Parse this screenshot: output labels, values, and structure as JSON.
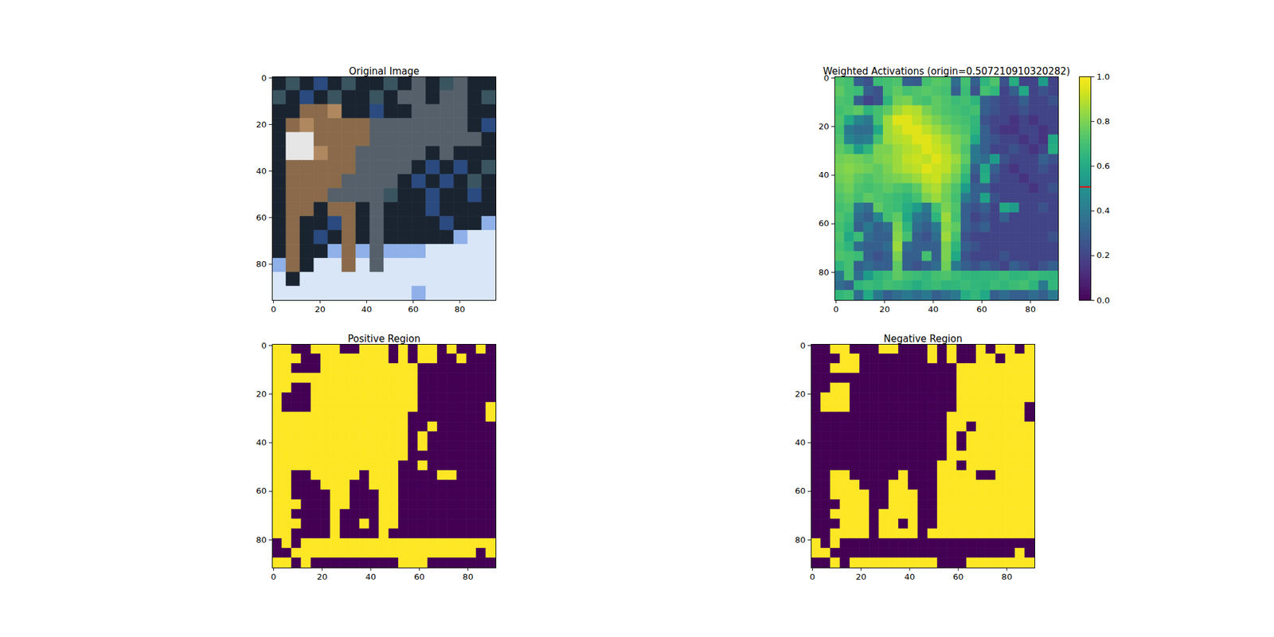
{
  "chart_data": [
    {
      "type": "image",
      "title": "Original Image",
      "xlim": [
        -0.5,
        95.5
      ],
      "ylim": [
        95.5,
        -0.5
      ],
      "xticks": [
        0,
        20,
        40,
        60,
        80
      ],
      "yticks": [
        0,
        20,
        40,
        60,
        80
      ],
      "pixels": [
        [
          "#1a2430",
          "#3a5560",
          "#1a2430",
          "#2a4a80",
          "#1a2430",
          "#3a5560",
          "#1a2430",
          "#1a2430",
          "#3a5560",
          "#1a2430",
          "#55606a",
          "#1a2430",
          "#3a5560",
          "#55606a",
          "#1a2430",
          "#1a2430"
        ],
        [
          "#3a5560",
          "#1a2430",
          "#2a4a80",
          "#1a2430",
          "#3a5560",
          "#1a2430",
          "#1a2430",
          "#3a5560",
          "#1a2430",
          "#55606a",
          "#55606a",
          "#1a2430",
          "#55606a",
          "#55606a",
          "#1a2430",
          "#3a5560"
        ],
        [
          "#1a2430",
          "#1a2430",
          "#8a6a4a",
          "#8a6a4a",
          "#b08860",
          "#1a2430",
          "#1a2430",
          "#2a4a80",
          "#1a2430",
          "#1a2430",
          "#55606a",
          "#55606a",
          "#55606a",
          "#55606a",
          "#1a2430",
          "#1a2430"
        ],
        [
          "#1a2430",
          "#8a6a4a",
          "#b08860",
          "#8a6a4a",
          "#8a6a4a",
          "#8a6a4a",
          "#8a6a4a",
          "#55606a",
          "#55606a",
          "#55606a",
          "#55606a",
          "#55606a",
          "#55606a",
          "#55606a",
          "#1a2430",
          "#2a4a80"
        ],
        [
          "#1a2430",
          "#e6e6e6",
          "#e6e6e6",
          "#8a6a4a",
          "#8a6a4a",
          "#8a6a4a",
          "#8a6a4a",
          "#55606a",
          "#55606a",
          "#55606a",
          "#55606a",
          "#55606a",
          "#55606a",
          "#55606a",
          "#55606a",
          "#1a2430"
        ],
        [
          "#1a2430",
          "#e6e6e6",
          "#e6e6e6",
          "#b08860",
          "#8a6a4a",
          "#8a6a4a",
          "#55606a",
          "#55606a",
          "#55606a",
          "#55606a",
          "#55606a",
          "#1a2430",
          "#55606a",
          "#1a2430",
          "#1a2430",
          "#1a2430"
        ],
        [
          "#1a2430",
          "#8a6a4a",
          "#8a6a4a",
          "#8a6a4a",
          "#8a6a4a",
          "#8a6a4a",
          "#55606a",
          "#55606a",
          "#55606a",
          "#55606a",
          "#1a2430",
          "#2a4a80",
          "#1a2430",
          "#2a4a80",
          "#1a2430",
          "#3a5560"
        ],
        [
          "#1a2430",
          "#8a6a4a",
          "#8a6a4a",
          "#8a6a4a",
          "#8a6a4a",
          "#55606a",
          "#55606a",
          "#55606a",
          "#55606a",
          "#1a2430",
          "#2a4a80",
          "#1a2430",
          "#2a4a80",
          "#1a2430",
          "#3a5560",
          "#1a2430"
        ],
        [
          "#1a2430",
          "#8a6a4a",
          "#8a6a4a",
          "#8a6a4a",
          "#55606a",
          "#55606a",
          "#55606a",
          "#55606a",
          "#3a5560",
          "#1a2430",
          "#1a2430",
          "#2a4a80",
          "#1a2430",
          "#1a2430",
          "#2a4a80",
          "#1a2430"
        ],
        [
          "#1a2430",
          "#8a6a4a",
          "#8a6a4a",
          "#1a2430",
          "#8a6a4a",
          "#8a6a4a",
          "#1a2430",
          "#55606a",
          "#1a2430",
          "#1a2430",
          "#1a2430",
          "#2a4a80",
          "#1a2430",
          "#1a2430",
          "#1a2430",
          "#1a2430"
        ],
        [
          "#1a2430",
          "#8a6a4a",
          "#1a2430",
          "#1a2430",
          "#2a4a80",
          "#8a6a4a",
          "#1a2430",
          "#55606a",
          "#1a2430",
          "#1a2430",
          "#1a2430",
          "#1a2430",
          "#2a4a80",
          "#1a2430",
          "#1a2430",
          "#8fb0e8"
        ],
        [
          "#1a2430",
          "#8a6a4a",
          "#1a2430",
          "#2a4a80",
          "#1a2430",
          "#8a6a4a",
          "#1a2430",
          "#55606a",
          "#1a2430",
          "#1a2430",
          "#1a2430",
          "#1a2430",
          "#1a2430",
          "#8fb0e8",
          "#d8e6f8",
          "#d8e6f8"
        ],
        [
          "#1a2430",
          "#8a6a4a",
          "#1a2430",
          "#1a2430",
          "#8fb0e8",
          "#8a6a4a",
          "#8fb0e8",
          "#55606a",
          "#8fb0e8",
          "#8fb0e8",
          "#8fb0e8",
          "#d8e6f8",
          "#d8e6f8",
          "#d8e6f8",
          "#d8e6f8",
          "#d8e6f8"
        ],
        [
          "#8fb0e8",
          "#8a6a4a",
          "#1a2430",
          "#d8e6f8",
          "#d8e6f8",
          "#8a6a4a",
          "#d8e6f8",
          "#55606a",
          "#d8e6f8",
          "#d8e6f8",
          "#d8e6f8",
          "#d8e6f8",
          "#d8e6f8",
          "#d8e6f8",
          "#d8e6f8",
          "#d8e6f8"
        ],
        [
          "#d8e6f8",
          "#1a2430",
          "#d8e6f8",
          "#d8e6f8",
          "#d8e6f8",
          "#d8e6f8",
          "#d8e6f8",
          "#d8e6f8",
          "#d8e6f8",
          "#d8e6f8",
          "#d8e6f8",
          "#d8e6f8",
          "#d8e6f8",
          "#d8e6f8",
          "#d8e6f8",
          "#d8e6f8"
        ],
        [
          "#d8e6f8",
          "#d8e6f8",
          "#d8e6f8",
          "#d8e6f8",
          "#d8e6f8",
          "#d8e6f8",
          "#d8e6f8",
          "#d8e6f8",
          "#d8e6f8",
          "#d8e6f8",
          "#8fb0e8",
          "#d8e6f8",
          "#d8e6f8",
          "#d8e6f8",
          "#d8e6f8",
          "#d8e6f8"
        ]
      ]
    },
    {
      "type": "heatmap",
      "title": "Weighted Activations (origin=0.507210910320282)",
      "origin": 0.507210910320282,
      "xlim": [
        -0.5,
        91.5
      ],
      "ylim": [
        91.5,
        -0.5
      ],
      "xticks": [
        0,
        20,
        40,
        60,
        80
      ],
      "yticks": [
        0,
        20,
        40,
        60,
        80
      ],
      "colorbar": {
        "lim": [
          0,
          1
        ],
        "ticks": [
          {
            "value": 0,
            "label": "0.0"
          },
          {
            "value": 0.2,
            "label": "0.2"
          },
          {
            "value": 0.4,
            "label": "0.4"
          },
          {
            "value": 0.6,
            "label": "0.6"
          },
          {
            "value": 0.8,
            "label": "0.8"
          },
          {
            "value": 1,
            "label": "1.0"
          }
        ]
      },
      "cells": [
        [
          0.72,
          0.7,
          0.3,
          0.25,
          0.68,
          0.7,
          0.72,
          0.3,
          0.28,
          0.7,
          0.74,
          0.72,
          0.35,
          0.7,
          0.3,
          0.65,
          0.72,
          0.25,
          0.62,
          0.2,
          0.2,
          0.55,
          0.2
        ],
        [
          0.75,
          0.7,
          0.68,
          0.3,
          0.25,
          0.7,
          0.75,
          0.7,
          0.72,
          0.74,
          0.72,
          0.7,
          0.3,
          0.68,
          0.25,
          0.7,
          0.66,
          0.2,
          0.3,
          0.6,
          0.2,
          0.25,
          0.2
        ],
        [
          0.72,
          0.7,
          0.3,
          0.2,
          0.25,
          0.65,
          0.78,
          0.8,
          0.72,
          0.7,
          0.75,
          0.72,
          0.68,
          0.7,
          0.65,
          0.3,
          0.25,
          0.2,
          0.22,
          0.3,
          0.2,
          0.2,
          0.25
        ],
        [
          0.7,
          0.72,
          0.75,
          0.65,
          0.7,
          0.75,
          0.85,
          0.9,
          0.88,
          0.8,
          0.75,
          0.72,
          0.7,
          0.68,
          0.7,
          0.3,
          0.25,
          0.2,
          0.2,
          0.25,
          0.2,
          0.2,
          0.2
        ],
        [
          0.72,
          0.6,
          0.45,
          0.4,
          0.7,
          0.85,
          0.95,
          0.95,
          0.9,
          0.85,
          0.8,
          0.75,
          0.72,
          0.7,
          0.66,
          0.25,
          0.2,
          0.2,
          0.15,
          0.2,
          0.15,
          0.2,
          0.2
        ],
        [
          0.7,
          0.4,
          0.35,
          0.35,
          0.6,
          0.85,
          0.9,
          0.95,
          0.95,
          0.9,
          0.85,
          0.8,
          0.75,
          0.72,
          0.65,
          0.3,
          0.2,
          0.15,
          0.15,
          0.2,
          0.2,
          0.15,
          0.2
        ],
        [
          0.72,
          0.45,
          0.4,
          0.42,
          0.7,
          0.85,
          0.88,
          0.9,
          0.95,
          0.95,
          0.9,
          0.85,
          0.8,
          0.75,
          0.6,
          0.3,
          0.25,
          0.2,
          0.2,
          0.15,
          0.2,
          0.15,
          0.6
        ],
        [
          0.75,
          0.7,
          0.55,
          0.65,
          0.8,
          0.8,
          0.85,
          0.88,
          0.9,
          0.95,
          0.92,
          0.88,
          0.8,
          0.72,
          0.4,
          0.3,
          0.2,
          0.2,
          0.25,
          0.2,
          0.15,
          0.2,
          0.62
        ],
        [
          0.78,
          0.8,
          0.78,
          0.75,
          0.8,
          0.82,
          0.85,
          0.9,
          0.92,
          0.9,
          0.95,
          0.9,
          0.85,
          0.75,
          0.4,
          0.35,
          0.55,
          0.25,
          0.2,
          0.2,
          0.2,
          0.3,
          0.25
        ],
        [
          0.8,
          0.82,
          0.8,
          0.78,
          0.75,
          0.8,
          0.85,
          0.88,
          0.9,
          0.95,
          0.92,
          0.9,
          0.82,
          0.7,
          0.3,
          0.6,
          0.3,
          0.2,
          0.15,
          0.2,
          0.2,
          0.25,
          0.2
        ],
        [
          0.78,
          0.8,
          0.75,
          0.72,
          0.75,
          0.78,
          0.8,
          0.82,
          0.85,
          0.9,
          0.92,
          0.85,
          0.78,
          0.65,
          0.25,
          0.62,
          0.25,
          0.2,
          0.2,
          0.15,
          0.2,
          0.2,
          0.2
        ],
        [
          0.75,
          0.78,
          0.72,
          0.7,
          0.72,
          0.75,
          0.72,
          0.7,
          0.75,
          0.85,
          0.88,
          0.8,
          0.72,
          0.55,
          0.3,
          0.3,
          0.2,
          0.2,
          0.2,
          0.2,
          0.15,
          0.2,
          0.25
        ],
        [
          0.72,
          0.75,
          0.7,
          0.75,
          0.72,
          0.7,
          0.68,
          0.65,
          0.7,
          0.8,
          0.85,
          0.78,
          0.7,
          0.4,
          0.3,
          0.58,
          0.25,
          0.2,
          0.2,
          0.2,
          0.2,
          0.2,
          0.2
        ],
        [
          0.7,
          0.72,
          0.4,
          0.35,
          0.75,
          0.7,
          0.68,
          0.62,
          0.55,
          0.4,
          0.7,
          0.8,
          0.72,
          0.3,
          0.25,
          0.3,
          0.2,
          0.6,
          0.55,
          0.2,
          0.2,
          0.25,
          0.2
        ],
        [
          0.72,
          0.68,
          0.35,
          0.3,
          0.45,
          0.7,
          0.75,
          0.6,
          0.4,
          0.35,
          0.65,
          0.85,
          0.7,
          0.3,
          0.2,
          0.25,
          0.2,
          0.3,
          0.2,
          0.2,
          0.2,
          0.2,
          0.2
        ],
        [
          0.7,
          0.65,
          0.3,
          0.4,
          0.3,
          0.35,
          0.8,
          0.65,
          0.35,
          0.3,
          0.4,
          0.82,
          0.75,
          0.3,
          0.25,
          0.3,
          0.2,
          0.2,
          0.2,
          0.2,
          0.2,
          0.2,
          0.2
        ],
        [
          0.72,
          0.6,
          0.68,
          0.35,
          0.3,
          0.3,
          0.82,
          0.7,
          0.3,
          0.25,
          0.35,
          0.85,
          0.7,
          0.25,
          0.2,
          0.2,
          0.2,
          0.2,
          0.2,
          0.2,
          0.2,
          0.2,
          0.25
        ],
        [
          0.7,
          0.65,
          0.35,
          0.3,
          0.3,
          0.35,
          0.85,
          0.35,
          0.3,
          0.3,
          0.3,
          0.8,
          0.65,
          0.3,
          0.25,
          0.2,
          0.2,
          0.2,
          0.2,
          0.2,
          0.2,
          0.2,
          0.2
        ],
        [
          0.72,
          0.7,
          0.68,
          0.3,
          0.25,
          0.3,
          0.8,
          0.3,
          0.3,
          0.7,
          0.3,
          0.8,
          0.6,
          0.25,
          0.2,
          0.2,
          0.2,
          0.25,
          0.2,
          0.2,
          0.2,
          0.2,
          0.2
        ],
        [
          0.65,
          0.7,
          0.3,
          0.35,
          0.3,
          0.3,
          0.75,
          0.3,
          0.25,
          0.3,
          0.35,
          0.78,
          0.4,
          0.3,
          0.25,
          0.3,
          0.25,
          0.2,
          0.3,
          0.25,
          0.2,
          0.25,
          0.3
        ],
        [
          0.4,
          0.7,
          0.35,
          0.55,
          0.65,
          0.68,
          0.75,
          0.7,
          0.68,
          0.66,
          0.7,
          0.72,
          0.68,
          0.66,
          0.65,
          0.66,
          0.66,
          0.68,
          0.65,
          0.66,
          0.68,
          0.66,
          0.65
        ],
        [
          0.35,
          0.3,
          0.65,
          0.68,
          0.66,
          0.7,
          0.68,
          0.66,
          0.62,
          0.66,
          0.68,
          0.65,
          0.66,
          0.68,
          0.66,
          0.65,
          0.68,
          0.66,
          0.68,
          0.7,
          0.65,
          0.4,
          0.66
        ],
        [
          0.66,
          0.68,
          0.35,
          0.6,
          0.4,
          0.3,
          0.35,
          0.4,
          0.35,
          0.4,
          0.3,
          0.35,
          0.4,
          0.62,
          0.66,
          0.6,
          0.3,
          0.35,
          0.3,
          0.3,
          0.35,
          0.3,
          0.4
        ]
      ]
    },
    {
      "type": "positive_mask",
      "title": "Positive Region",
      "xlim": [
        -0.5,
        91.5
      ],
      "ylim": [
        91.5,
        -0.5
      ],
      "xticks": [
        0,
        20,
        40,
        60,
        80
      ],
      "yticks": [
        0,
        20,
        40,
        60,
        80
      ]
    },
    {
      "type": "negative_mask",
      "title": "Negative Region",
      "xlim": [
        -0.5,
        91.5
      ],
      "ylim": [
        91.5,
        -0.5
      ],
      "xticks": [
        0,
        20,
        40,
        60,
        80
      ],
      "yticks": [
        0,
        20,
        40,
        60,
        80
      ]
    }
  ]
}
